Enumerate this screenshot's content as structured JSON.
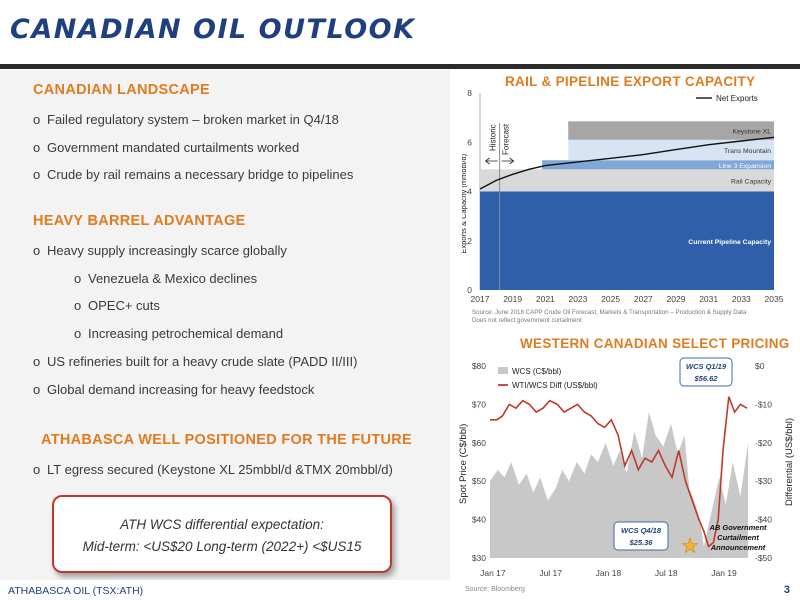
{
  "title": "CANADIAN OIL OUTLOOK",
  "left": {
    "sections": [
      {
        "heading": "CANADIAN LANDSCAPE",
        "bullets": [
          "Failed regulatory system – broken market in Q4/18",
          "Government mandated curtailments worked",
          "Crude by rail remains a necessary bridge to pipelines"
        ]
      },
      {
        "heading": "HEAVY BARREL ADVANTAGE",
        "bullets": [
          "Heavy supply increasingly scarce globally",
          "Venezuela & Mexico declines",
          "OPEC+ cuts",
          "Increasing petrochemical demand",
          "US refineries built for a heavy crude slate (PADD II/III)",
          "Global demand increasing for heavy feedstock"
        ]
      },
      {
        "heading": "ATHABASCA WELL POSITIONED FOR THE FUTURE",
        "bullets": [
          "LT egress secured (Keystone XL 25mbbl/d &TMX 20mbbl/d)"
        ]
      }
    ],
    "bullet_marker": "o",
    "callout": {
      "line1": "ATH WCS differential expectation:",
      "line2": "Mid-term: <US$20    Long-term (2022+) <$US15"
    }
  },
  "footer": {
    "company": "ATHABASCA OIL (TSX:ATH)",
    "source": "Source: Bloomberg",
    "page": "3"
  },
  "chart_data": [
    {
      "type": "area",
      "title": "RAIL & PIPELINE EXPORT CAPACITY",
      "ylabel": "Exports & Capacity (mmbbl/d)",
      "ylim": [
        0,
        8
      ],
      "yticks": [
        "0",
        "2",
        "4",
        "6",
        "8"
      ],
      "xlim": [
        2017,
        2035
      ],
      "xticks": [
        "2017",
        "2019",
        "2021",
        "2023",
        "2025",
        "2027",
        "2029",
        "2031",
        "2033",
        "2035"
      ],
      "legend": "Net Exports",
      "legend_position": "top-right",
      "historic_label": "Historic",
      "forecast_label": "Forecast",
      "divider_x": 2018.2,
      "layers": [
        {
          "name": "Current Pipeline Capacity",
          "start": 2017,
          "bottom": 0,
          "top": 4.0,
          "color": "#2e5fa8"
        },
        {
          "name": "Rail Capacity",
          "start": 2017,
          "bottom": 4.0,
          "top": 4.9,
          "color": "#d9d9d9"
        },
        {
          "name": "Line 3 Expansion",
          "start": 2020.8,
          "bottom": 4.9,
          "top": 5.27,
          "color": "#7fa8d8"
        },
        {
          "name": "Trans Mountain",
          "start": 2022.4,
          "bottom": 5.27,
          "top": 6.1,
          "color": "#d6e4f3"
        },
        {
          "name": "Keystone XL",
          "start": 2022.4,
          "bottom": 6.1,
          "top": 6.85,
          "color": "#a6a6a6"
        }
      ],
      "net_exports": {
        "x": [
          2017,
          2018,
          2019,
          2020,
          2021,
          2023,
          2025,
          2027,
          2029,
          2031,
          2033,
          2035
        ],
        "y": [
          4.1,
          4.45,
          4.7,
          4.9,
          5.05,
          5.2,
          5.35,
          5.5,
          5.7,
          5.9,
          6.05,
          6.2
        ]
      },
      "source": "Source: June 2018 CAPP Crude Oil Forecast, Markets & Transportation – Production & Supply Data",
      "note": "Does not reflect government curtailment"
    },
    {
      "type": "line",
      "title": "WESTERN CANADIAN SELECT PRICING",
      "ylabel_left": "Spot Price (C$/bbl)",
      "ylabel_right": "Differential (US$/bbl)",
      "ylim_left": [
        30,
        80
      ],
      "yticks_left": [
        "$30",
        "$40",
        "$50",
        "$60",
        "$70",
        "$80"
      ],
      "ylim_right": [
        -50,
        0
      ],
      "yticks_right": [
        "-$50",
        "-$40",
        "-$30",
        "-$20",
        "-$10",
        "$0"
      ],
      "xticks": [
        "Jan 17",
        "Jul 17",
        "Jan 18",
        "Jul 18",
        "Jan 19"
      ],
      "xlim": [
        0,
        27
      ],
      "series": [
        {
          "name": "WCS (C$/bbl)",
          "color": "#c8c8c8",
          "x": [
            0,
            0.8,
            1.5,
            2.2,
            3,
            3.8,
            4.5,
            5.2,
            6,
            6.8,
            7.5,
            8.2,
            9,
            9.8,
            10.5,
            11.2,
            12,
            12.8,
            13.5,
            14.2,
            15,
            15.8,
            16.5,
            17.2,
            18,
            18.8,
            19.5,
            20.2,
            20.7,
            21.2,
            21.8,
            22.2,
            23,
            23.8,
            24.5,
            25.2,
            26,
            26.8
          ],
          "y": [
            50,
            53,
            51,
            55,
            49,
            52,
            47,
            51,
            45,
            48,
            53,
            50,
            55,
            52,
            57,
            55,
            60,
            54,
            58,
            52,
            63,
            56,
            68,
            62,
            59,
            65,
            57,
            62,
            48,
            45,
            40,
            33,
            42,
            51,
            44,
            55,
            46,
            60
          ]
        },
        {
          "name": "WTI/WCS Diff (US$/bbl)",
          "color": "#c0392b",
          "x": [
            0,
            0.7,
            1.3,
            2,
            2.7,
            3.4,
            4.1,
            4.8,
            5.5,
            6.2,
            7,
            7.7,
            8.4,
            9.1,
            9.8,
            10.5,
            11.2,
            11.9,
            12.6,
            13.3,
            14,
            14.7,
            15.4,
            16.1,
            16.8,
            17.5,
            18.2,
            18.9,
            19.6,
            20.3,
            21,
            21.7,
            22.2,
            22.7,
            23.2,
            23.7,
            24.2,
            24.8,
            25.4,
            26,
            26.7
          ],
          "y": [
            -14,
            -14,
            -13,
            -10,
            -11,
            -9,
            -10,
            -12,
            -11,
            -9,
            -10,
            -12,
            -11,
            -10,
            -12,
            -13,
            -15,
            -16,
            -14,
            -18,
            -26,
            -22,
            -27,
            -24,
            -25,
            -22,
            -26,
            -29,
            -22,
            -30,
            -35,
            -40,
            -43,
            -47,
            -46,
            -40,
            -22,
            -8,
            -12,
            -10,
            -11
          ]
        }
      ],
      "annotations": [
        {
          "label": "WCS Q1/19",
          "value": "$56.62"
        },
        {
          "label": "WCS Q4/18",
          "value": "$25.36"
        },
        {
          "label": "AB Government Curtailment Announcement"
        }
      ]
    }
  ]
}
